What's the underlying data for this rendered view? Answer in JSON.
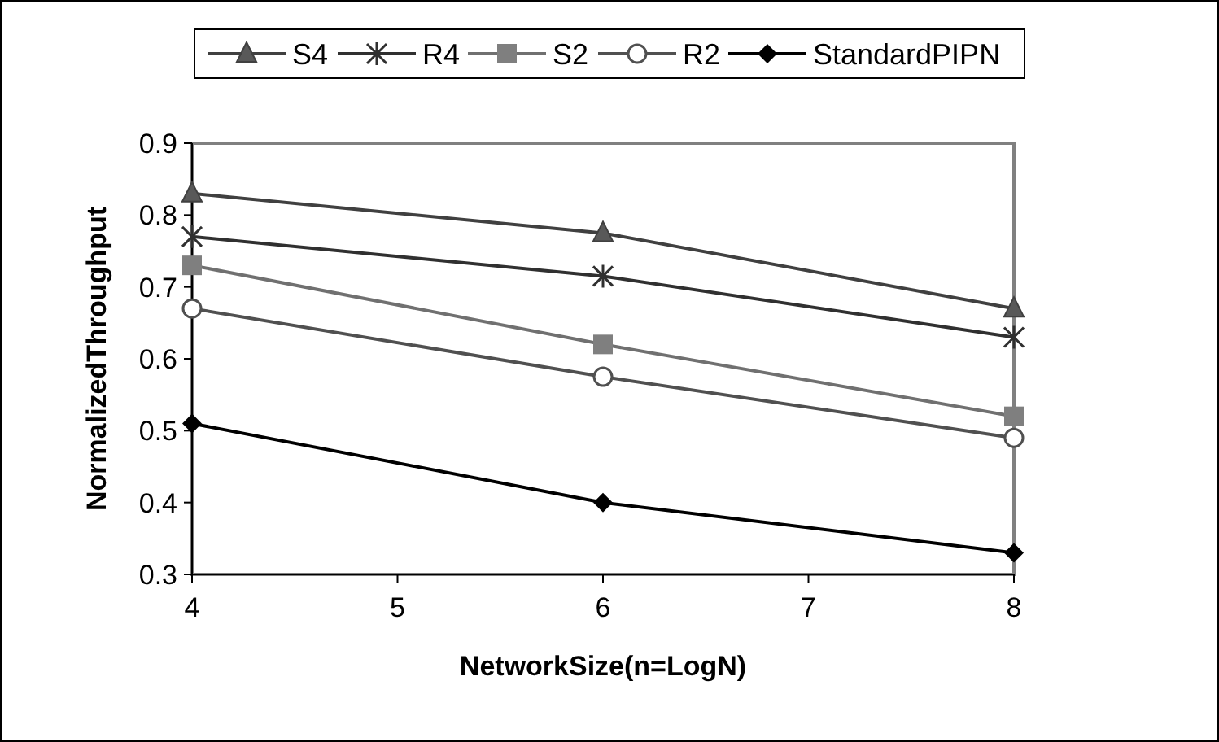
{
  "chart_data": {
    "type": "line",
    "xlabel": "NetworkSize(n=LogN)",
    "ylabel": "NormalizedThroughput",
    "x": [
      4,
      6,
      8
    ],
    "xlim": [
      4,
      8
    ],
    "xticks": [
      4,
      5,
      6,
      7,
      8
    ],
    "ylim": [
      0.3,
      0.9
    ],
    "yticks": [
      0.3,
      0.4,
      0.5,
      0.6,
      0.7,
      0.8,
      0.9
    ],
    "legend": "top",
    "grid": false,
    "series": [
      {
        "name": "S4",
        "color": "#404040",
        "marker": "triangle",
        "values": [
          0.83,
          0.775,
          0.67
        ]
      },
      {
        "name": "R4",
        "color": "#303030",
        "marker": "cross",
        "values": [
          0.77,
          0.715,
          0.63
        ]
      },
      {
        "name": "S2",
        "color": "#707070",
        "marker": "square",
        "values": [
          0.73,
          0.62,
          0.52
        ]
      },
      {
        "name": "R2",
        "color": "#505050",
        "marker": "circle",
        "values": [
          0.67,
          0.575,
          0.49
        ]
      },
      {
        "name": "StandardPIPN",
        "color": "#000000",
        "marker": "diamond",
        "values": [
          0.51,
          0.4,
          0.33
        ]
      }
    ]
  }
}
